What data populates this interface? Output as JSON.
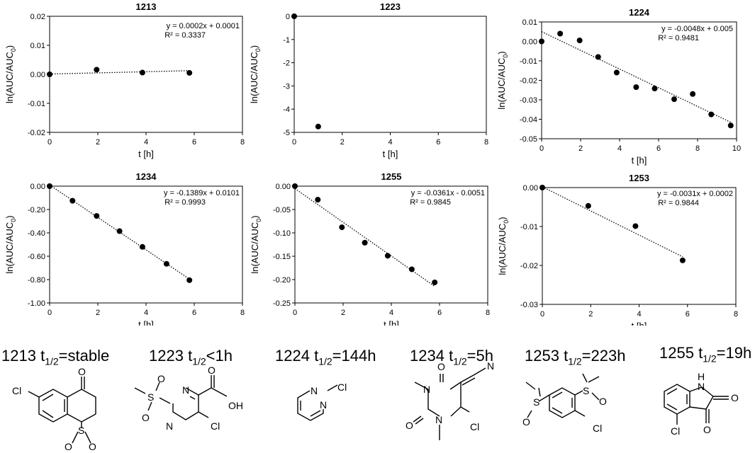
{
  "chart_data": [
    {
      "type": "scatter",
      "title": "1213",
      "xlabel": "t [h]",
      "ylabel_main": "ln(AUC/AUC",
      "ylabel_sub": "0",
      "xlim": [
        0,
        8
      ],
      "ylim": [
        -0.02,
        0.02
      ],
      "xticks": [
        0,
        2,
        4,
        6,
        8
      ],
      "yticks": [
        0.02,
        0.01,
        0.0,
        -0.01,
        -0.02
      ],
      "ytick_labels": [
        "0.02",
        "0.01",
        "0.00",
        "-0.01",
        "-0.02"
      ],
      "x": [
        0,
        1.95,
        3.85,
        5.8
      ],
      "y": [
        0.0,
        0.0016,
        0.0006,
        0.0005
      ],
      "trendline": {
        "slope": 0.0002,
        "intercept": 0.0001,
        "x_range": [
          0,
          5.8
        ]
      },
      "equation": "y = 0.0002x + 0.0001",
      "r2": "R² = 0.3337"
    },
    {
      "type": "scatter",
      "title": "1223",
      "xlabel": "t [h]",
      "ylabel_main": "ln(AUC/AUC",
      "ylabel_sub": "0",
      "xlim": [
        0,
        8
      ],
      "ylim": [
        -5,
        0
      ],
      "xticks": [
        0,
        2,
        4,
        6,
        8
      ],
      "yticks": [
        0,
        -1,
        -2,
        -3,
        -4,
        -5
      ],
      "ytick_labels": [
        "0",
        "-1",
        "-2",
        "-3",
        "-4",
        "-5"
      ],
      "x": [
        0,
        1
      ],
      "y": [
        0,
        -4.75
      ]
    },
    {
      "type": "scatter",
      "title": "1224",
      "xlabel": "t [h]",
      "ylabel_main": "ln(AUC/AUC",
      "ylabel_sub": "0",
      "xlim": [
        0,
        10
      ],
      "ylim": [
        -0.05,
        0.01
      ],
      "xticks": [
        0,
        2,
        4,
        6,
        8,
        10
      ],
      "yticks": [
        0.01,
        0.0,
        -0.01,
        -0.02,
        -0.03,
        -0.04,
        -0.05
      ],
      "ytick_labels": [
        "0.01",
        "0.00",
        "-0.01",
        "-0.02",
        "-0.03",
        "-0.04",
        "-0.05"
      ],
      "x": [
        0,
        0.95,
        1.95,
        2.9,
        3.85,
        4.85,
        5.8,
        6.8,
        7.75,
        8.7,
        9.7
      ],
      "y": [
        0.0,
        0.004,
        0.0005,
        -0.008,
        -0.016,
        -0.0235,
        -0.0242,
        -0.0297,
        -0.027,
        -0.0375,
        -0.0432
      ],
      "trendline": {
        "slope": -0.0048,
        "intercept": 0.005,
        "x_range": [
          0,
          9.7
        ]
      },
      "equation": "y = -0.0048x + 0.005",
      "r2": "R² = 0.9481"
    },
    {
      "type": "scatter",
      "title": "1234",
      "xlabel": "t [h]",
      "ylabel_main": "ln(AUC/AUC",
      "ylabel_sub": "0",
      "xlim": [
        0,
        8
      ],
      "ylim": [
        -1.0,
        0.0
      ],
      "xticks": [
        0,
        2,
        4,
        6,
        8
      ],
      "yticks": [
        0,
        -0.2,
        -0.4,
        -0.6,
        -0.8,
        -1.0
      ],
      "ytick_labels": [
        "0.00",
        "-0.20",
        "-0.40",
        "-0.60",
        "-0.80",
        "-1.00"
      ],
      "x": [
        0,
        0.95,
        1.95,
        2.9,
        3.85,
        4.85,
        5.8
      ],
      "y": [
        0.0,
        -0.125,
        -0.255,
        -0.385,
        -0.52,
        -0.665,
        -0.805
      ],
      "trendline": {
        "slope": -0.1389,
        "intercept": 0.0101,
        "x_range": [
          0,
          5.8
        ]
      },
      "equation": "y = -0.1389x + 0.0101",
      "r2": "R² = 0.9993"
    },
    {
      "type": "scatter",
      "title": "1255",
      "xlabel": "t [h]",
      "ylabel_main": "ln(AUC/AUC",
      "ylabel_sub": "0",
      "xlim": [
        0,
        8
      ],
      "ylim": [
        -0.25,
        0.0
      ],
      "xticks": [
        0,
        2,
        4,
        6,
        8
      ],
      "yticks": [
        0,
        -0.05,
        -0.1,
        -0.15,
        -0.2,
        -0.25
      ],
      "ytick_labels": [
        "0.00",
        "-0.05",
        "-0.10",
        "-0.15",
        "-0.20",
        "-0.25"
      ],
      "x": [
        0,
        0.95,
        1.95,
        2.9,
        3.85,
        4.85,
        5.8
      ],
      "y": [
        0.0,
        -0.029,
        -0.088,
        -0.121,
        -0.149,
        -0.178,
        -0.206
      ],
      "trendline": {
        "slope": -0.0361,
        "intercept": -0.0051,
        "x_range": [
          0,
          5.8
        ]
      },
      "equation": "y = -0.0361x - 0.0051",
      "r2": "R² = 0.9845"
    },
    {
      "type": "scatter",
      "title": "1253",
      "xlabel": "t [h]",
      "ylabel_main": "ln(AUC/AUC",
      "ylabel_sub": "0",
      "xlim": [
        0,
        8
      ],
      "ylim": [
        -0.03,
        0.0
      ],
      "xticks": [
        0,
        2,
        4,
        6,
        8
      ],
      "yticks": [
        0,
        -0.01,
        -0.02,
        -0.03
      ],
      "ytick_labels": [
        "0.00",
        "-0.01",
        "-0.02",
        "-0.03"
      ],
      "x": [
        0,
        1.9,
        3.85,
        5.8
      ],
      "y": [
        0.0,
        -0.0047,
        -0.0099,
        -0.0187
      ],
      "trendline": {
        "slope": -0.0031,
        "intercept": 0.0002,
        "x_range": [
          0,
          5.8
        ]
      },
      "equation": "y = -0.0031x + 0.0002",
      "r2": "R² = 0.9844"
    }
  ],
  "compounds": [
    {
      "id": "1213",
      "tlabel": "t",
      "tsub": "1/2",
      "value": "=stable"
    },
    {
      "id": "1223",
      "tlabel": "t",
      "tsub": "1/2",
      "value": "<1h"
    },
    {
      "id": "1224",
      "tlabel": "t",
      "tsub": "1/2",
      "value": "=144h"
    },
    {
      "id": "1234",
      "tlabel": "t",
      "tsub": "1/2",
      "value": "=5h"
    },
    {
      "id": "1253",
      "tlabel": "t",
      "tsub": "1/2",
      "value": "=223h"
    },
    {
      "id": "1255",
      "tlabel": "t",
      "tsub": "1/2",
      "value": "=19h"
    }
  ],
  "atoms": {
    "cl": "Cl",
    "o": "O",
    "s": "S",
    "n": "N",
    "oh": "OH",
    "nh": "H"
  }
}
